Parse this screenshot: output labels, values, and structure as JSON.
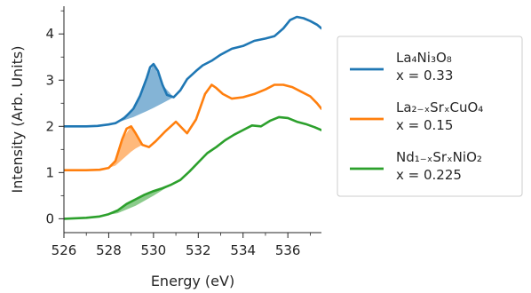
{
  "chart_data": {
    "type": "line",
    "title": "",
    "xlabel": "Energy (eV)",
    "ylabel": "Intensity (Arb. Units)",
    "xlim": [
      526,
      537.5
    ],
    "ylim": [
      -0.3,
      4.6
    ],
    "xticks": [
      526,
      528,
      530,
      532,
      534,
      536
    ],
    "yticks": [
      0,
      1,
      2,
      3,
      4
    ],
    "grid": false,
    "legend_position": "right, outside plot",
    "series": [
      {
        "legend_formula": "La₄Ni₃O₈",
        "legend_param": "x = 0.33",
        "color": "#1f77b4",
        "fill_type": "prepeak shading",
        "x": [
          526,
          527,
          527.5,
          528,
          528.3,
          528.7,
          529.1,
          529.4,
          529.7,
          529.85,
          530.0,
          530.2,
          530.4,
          530.6,
          530.9,
          531.2,
          531.5,
          531.9,
          532.2,
          532.6,
          533.0,
          533.5,
          534.0,
          534.5,
          535.0,
          535.4,
          535.8,
          536.1,
          536.4,
          536.7,
          537.0,
          537.3,
          537.5
        ],
        "y": [
          2.0,
          2.0,
          2.01,
          2.04,
          2.07,
          2.18,
          2.38,
          2.66,
          3.05,
          3.28,
          3.35,
          3.2,
          2.9,
          2.68,
          2.63,
          2.78,
          3.02,
          3.2,
          3.32,
          3.42,
          3.55,
          3.68,
          3.74,
          3.85,
          3.9,
          3.95,
          4.12,
          4.3,
          4.37,
          4.34,
          4.28,
          4.2,
          4.12
        ]
      },
      {
        "legend_formula": "La₂₋ₓSrₓCuO₄",
        "legend_param": "x = 0.15",
        "color": "#ff7f0e",
        "fill_type": "prepeak shading",
        "x": [
          526,
          527,
          527.6,
          528.0,
          528.3,
          528.6,
          528.8,
          529.0,
          529.2,
          529.5,
          529.8,
          530.1,
          530.5,
          531.0,
          531.5,
          531.9,
          532.3,
          532.6,
          532.8,
          533.1,
          533.5,
          534.0,
          534.5,
          535.0,
          535.4,
          535.8,
          536.2,
          536.6,
          537.0,
          537.3,
          537.5
        ],
        "y": [
          1.05,
          1.05,
          1.06,
          1.1,
          1.25,
          1.72,
          1.95,
          2.0,
          1.85,
          1.6,
          1.55,
          1.68,
          1.88,
          2.1,
          1.85,
          2.15,
          2.7,
          2.9,
          2.83,
          2.7,
          2.6,
          2.63,
          2.7,
          2.8,
          2.9,
          2.9,
          2.85,
          2.75,
          2.65,
          2.5,
          2.38
        ]
      },
      {
        "legend_formula": "Nd₁₋ₓSrₓNiO₂",
        "legend_param": "x = 0.225",
        "color": "#2ca02c",
        "fill_type": "prepeak shading",
        "x": [
          526,
          527,
          527.6,
          528.0,
          528.4,
          528.8,
          529.2,
          529.6,
          530.0,
          530.4,
          530.8,
          531.2,
          531.6,
          532.0,
          532.4,
          532.8,
          533.2,
          533.6,
          534.0,
          534.4,
          534.8,
          535.2,
          535.6,
          536.0,
          536.4,
          536.8,
          537.2,
          537.5
        ],
        "y": [
          0.0,
          0.02,
          0.05,
          0.1,
          0.18,
          0.32,
          0.42,
          0.52,
          0.6,
          0.66,
          0.74,
          0.84,
          1.02,
          1.22,
          1.42,
          1.55,
          1.7,
          1.82,
          1.92,
          2.02,
          2.0,
          2.12,
          2.2,
          2.18,
          2.1,
          2.05,
          1.98,
          1.92
        ]
      }
    ],
    "fills": [
      {
        "series": 0,
        "x": [
          528.3,
          529.1,
          529.7,
          530.0,
          530.4,
          530.9
        ],
        "upper": [
          2.07,
          2.38,
          3.05,
          3.35,
          2.9,
          2.63
        ],
        "lower": [
          2.07,
          2.2,
          2.33,
          2.4,
          2.5,
          2.63
        ]
      },
      {
        "series": 1,
        "x": [
          528.0,
          528.3,
          528.6,
          529.0,
          529.2,
          529.5
        ],
        "upper": [
          1.1,
          1.25,
          1.72,
          2.0,
          1.85,
          1.6
        ],
        "lower": [
          1.1,
          1.15,
          1.28,
          1.45,
          1.52,
          1.6
        ]
      },
      {
        "series": 2,
        "x": [
          527.6,
          528.4,
          529.2,
          530.0,
          530.8,
          531.6
        ],
        "upper": [
          0.05,
          0.18,
          0.42,
          0.6,
          0.74,
          1.02
        ],
        "lower": [
          0.05,
          0.12,
          0.28,
          0.5,
          0.74,
          1.02
        ]
      }
    ]
  }
}
